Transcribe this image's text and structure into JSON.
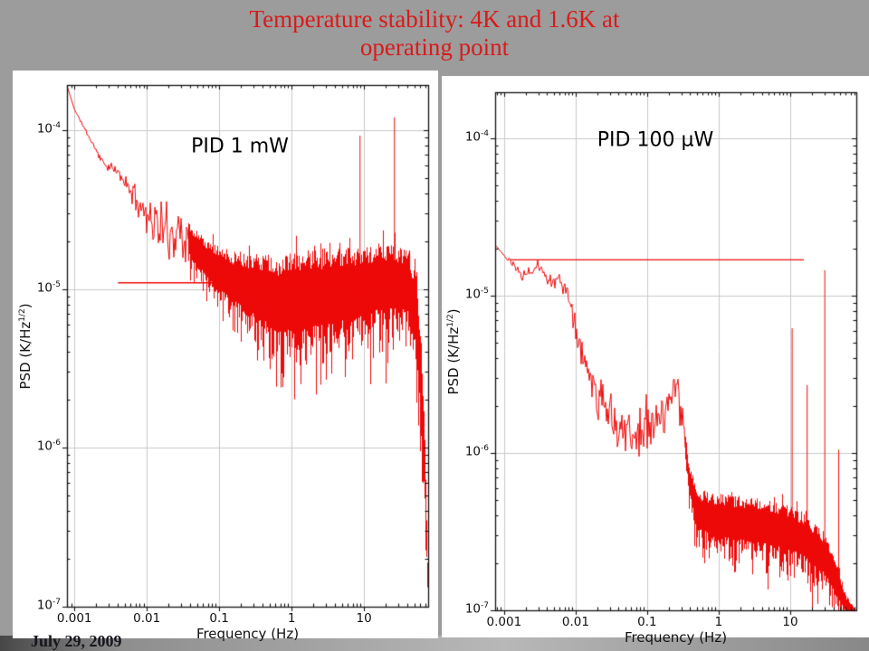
{
  "slide": {
    "title_line1": "Temperature stability: 4K and 1.6K at",
    "title_line2": "operating point",
    "title_color": "#d91a1a",
    "date": "July 29, 2009"
  },
  "chart_data": [
    {
      "id": "psd-pid-1mw",
      "type": "line",
      "scale": "log-log",
      "annotation": "PID 1 mW",
      "xlabel": "Frequency (Hz)",
      "ylabel": {
        "pre": "PSD (K/Hz",
        "sup": "1/2",
        "post": ")"
      },
      "x_ticks": [
        {
          "label": "0.001",
          "exp": -3
        },
        {
          "label": "0.01",
          "exp": -2
        },
        {
          "label": "0.1",
          "exp": -1
        },
        {
          "label": "1",
          "exp": 0
        },
        {
          "label": "10",
          "exp": 1
        }
      ],
      "y_ticks": [
        {
          "base": "10",
          "sup": "-4",
          "exp": -4
        },
        {
          "base": "10",
          "sup": "-5",
          "exp": -5
        },
        {
          "base": "10",
          "sup": "-6",
          "exp": -6
        },
        {
          "base": "10",
          "sup": "-7",
          "exp": -7
        }
      ],
      "xlim": [
        0.00079,
        77
      ],
      "ylim": [
        1e-07,
        0.000192
      ],
      "grid": true,
      "curve_color": "#ee0909",
      "seed": 11,
      "envelope": [
        [
          0.00079,
          0.00019,
          0.0,
          0
        ],
        [
          0.001,
          0.000135,
          0.0,
          0
        ],
        [
          0.0016,
          9e-05,
          0.01,
          0
        ],
        [
          0.0025,
          6.2e-05,
          0.015,
          0
        ],
        [
          0.004,
          5.4e-05,
          0.02,
          0
        ],
        [
          0.005,
          4.7e-05,
          0.025,
          0
        ],
        [
          0.008,
          3.4e-05,
          0.05,
          0
        ],
        [
          0.012,
          2.7e-05,
          0.08,
          0
        ],
        [
          0.02,
          2.2e-05,
          0.1,
          0
        ],
        [
          0.03,
          2.4e-05,
          0.12,
          0
        ],
        [
          0.045,
          1.8e-05,
          0.13,
          1
        ],
        [
          0.08,
          1.4e-05,
          0.15,
          1
        ],
        [
          0.15,
          1.15e-05,
          0.19,
          1
        ],
        [
          0.3,
          1e-05,
          0.24,
          1
        ],
        [
          0.7,
          8.5e-06,
          0.3,
          1
        ],
        [
          1.5,
          9e-06,
          0.3,
          1
        ],
        [
          3,
          9.5e-06,
          0.3,
          1
        ],
        [
          7,
          1e-05,
          0.28,
          1
        ],
        [
          15,
          1.1e-05,
          0.26,
          1
        ],
        [
          30,
          1.1e-05,
          0.24,
          1
        ],
        [
          40,
          1.05e-05,
          0.24,
          1
        ],
        [
          52,
          7e-06,
          0.28,
          1
        ],
        [
          60,
          3e-06,
          0.3,
          1
        ],
        [
          68,
          8e-07,
          0.25,
          1
        ],
        [
          73,
          2.5e-07,
          0.15,
          1
        ],
        [
          77,
          1.05e-07,
          0.04,
          1
        ]
      ],
      "spikes": [
        [
          8.7,
          9.2e-05
        ],
        [
          26,
          0.00012
        ],
        [
          40,
          1.6e-05
        ],
        [
          48,
          7.5e-06
        ]
      ],
      "ref_line": {
        "value": 1.1e-05,
        "from": 0.004,
        "to": 42,
        "end_cross": true
      }
    },
    {
      "id": "psd-pid-100uw",
      "type": "line",
      "scale": "log-log",
      "annotation": "PID 100 µW",
      "xlabel": "Frequency (Hz)",
      "ylabel": {
        "pre": "PSD (K/Hz",
        "sup": "1/2",
        "post": ")"
      },
      "x_ticks": [
        {
          "label": "0.001",
          "exp": -3
        },
        {
          "label": "0.01",
          "exp": -2
        },
        {
          "label": "0.1",
          "exp": -1
        },
        {
          "label": "1",
          "exp": 0
        },
        {
          "label": "10",
          "exp": 1
        }
      ],
      "y_ticks": [
        {
          "base": "10",
          "sup": "-4",
          "exp": -4
        },
        {
          "base": "10",
          "sup": "-5",
          "exp": -5
        },
        {
          "base": "10",
          "sup": "-6",
          "exp": -6
        },
        {
          "base": "10",
          "sup": "-7",
          "exp": -7
        }
      ],
      "xlim": [
        0.00075,
        84
      ],
      "ylim": [
        1e-07,
        0.000196
      ],
      "grid": true,
      "curve_color": "#ee0909",
      "seed": 23,
      "envelope": [
        [
          0.00075,
          2.1e-05,
          0.0,
          0
        ],
        [
          0.0011,
          1.7e-05,
          0.01,
          0
        ],
        [
          0.0018,
          1.35e-05,
          0.02,
          0
        ],
        [
          0.003,
          1.5e-05,
          0.03,
          0
        ],
        [
          0.0045,
          1.25e-05,
          0.03,
          0
        ],
        [
          0.006,
          1.3e-05,
          0.03,
          0
        ],
        [
          0.008,
          9.5e-06,
          0.04,
          0
        ],
        [
          0.012,
          4.5e-06,
          0.06,
          0
        ],
        [
          0.02,
          2.3e-06,
          0.08,
          0
        ],
        [
          0.04,
          1.5e-06,
          0.1,
          0
        ],
        [
          0.08,
          1.35e-06,
          0.11,
          0
        ],
        [
          0.15,
          1.6e-06,
          0.1,
          0
        ],
        [
          0.24,
          2.6e-06,
          0.06,
          0
        ],
        [
          0.3,
          1.8e-06,
          0.08,
          0
        ],
        [
          0.38,
          7e-07,
          0.1,
          1
        ],
        [
          0.5,
          4.2e-07,
          0.15,
          1
        ],
        [
          1,
          3.8e-07,
          0.17,
          1
        ],
        [
          3,
          3.6e-07,
          0.17,
          1
        ],
        [
          8,
          3.3e-07,
          0.17,
          1
        ],
        [
          15,
          2.9e-07,
          0.17,
          1
        ],
        [
          30,
          2.2e-07,
          0.16,
          1
        ],
        [
          45,
          1.5e-07,
          0.12,
          1
        ],
        [
          60,
          1.1e-07,
          0.06,
          1
        ],
        [
          78,
          1e-07,
          0.02,
          1
        ]
      ],
      "spikes": [
        [
          10.5,
          6.2e-06
        ],
        [
          17,
          2.7e-06
        ],
        [
          30,
          1.45e-05
        ],
        [
          47,
          1.05e-06
        ]
      ],
      "ref_line": {
        "value": 1.7e-05,
        "from": 0.0012,
        "to": 15.5,
        "end_cross": false
      }
    }
  ]
}
